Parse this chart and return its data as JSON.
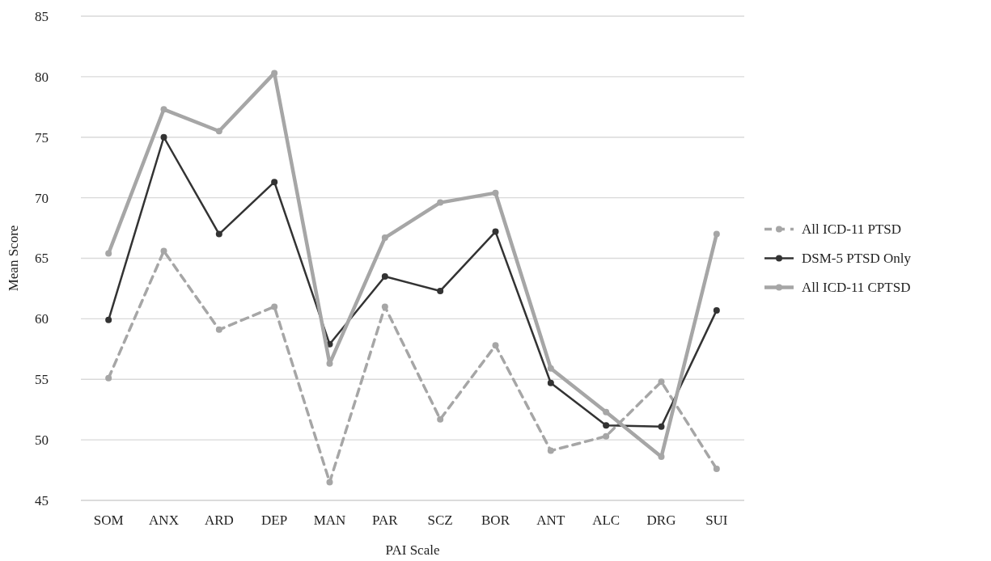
{
  "chart_data": {
    "type": "line",
    "xlabel": "PAI Scale",
    "ylabel": "Mean Score",
    "categories": [
      "SOM",
      "ANX",
      "ARD",
      "DEP",
      "MAN",
      "PAR",
      "SCZ",
      "BOR",
      "ANT",
      "ALC",
      "DRG",
      "SUI"
    ],
    "series": [
      {
        "name": "All ICD-11 PTSD",
        "color": "#a6a6a6",
        "line_style": "dashed",
        "values": [
          55.1,
          65.6,
          59.1,
          61.0,
          46.5,
          61.0,
          51.7,
          57.8,
          49.1,
          50.3,
          54.8,
          47.6
        ]
      },
      {
        "name": "DSM-5 PTSD Only",
        "color": "#333333",
        "line_style": "solid",
        "values": [
          59.9,
          75.0,
          67.0,
          71.3,
          57.9,
          63.5,
          62.3,
          67.2,
          54.7,
          51.2,
          51.1,
          60.7
        ]
      },
      {
        "name": "All ICD-11 CPTSD",
        "color": "#a6a6a6",
        "line_style": "solid",
        "values": [
          65.4,
          77.3,
          75.5,
          80.3,
          56.3,
          66.7,
          69.6,
          70.4,
          55.9,
          52.3,
          48.6,
          67.0
        ]
      }
    ],
    "ylim": [
      45,
      85
    ],
    "yticks": [
      45,
      50,
      55,
      60,
      65,
      70,
      75,
      80,
      85
    ],
    "grid": "y",
    "legend": "right",
    "marker": "circle"
  }
}
